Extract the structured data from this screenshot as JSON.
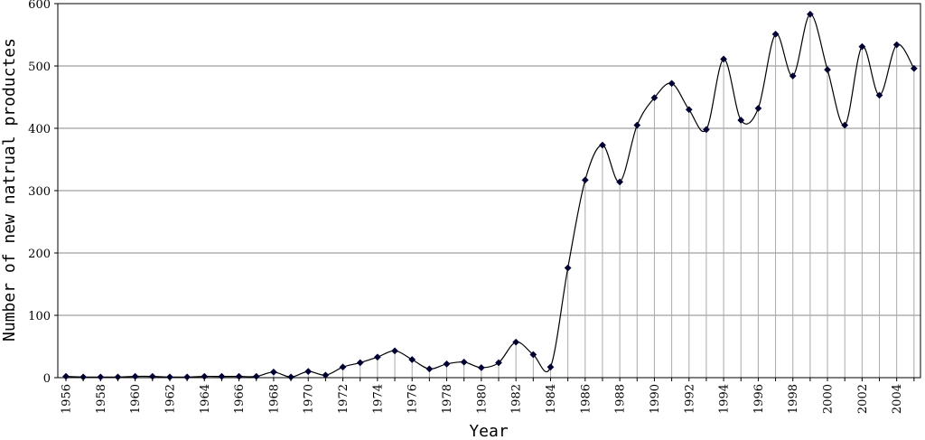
{
  "chart_data": {
    "type": "line",
    "title": "",
    "xlabel": "Year",
    "ylabel": "Number of new natrual productes",
    "ylim": [
      0,
      600
    ],
    "yticks": [
      0,
      100,
      200,
      300,
      400,
      500,
      600
    ],
    "xlim": [
      1956,
      2005
    ],
    "xtick_labels": [
      "1956",
      "1958",
      "1960",
      "1962",
      "1964",
      "1966",
      "1968",
      "1970",
      "1972",
      "1974",
      "1976",
      "1978",
      "1980",
      "1982",
      "1984",
      "1986",
      "1988",
      "1990",
      "1992",
      "1994",
      "1996",
      "1998",
      "2000",
      "2002",
      "2004"
    ],
    "grid": "horizontal",
    "drop_lines": true,
    "smoothed": true,
    "marker": "diamond",
    "colors": {
      "line": "#000000",
      "marker": "#000033",
      "grid": "#888888",
      "drop_line": "#aaaaaa"
    },
    "x": [
      1956,
      1957,
      1958,
      1959,
      1960,
      1961,
      1962,
      1963,
      1964,
      1965,
      1966,
      1967,
      1968,
      1969,
      1970,
      1971,
      1972,
      1973,
      1974,
      1975,
      1976,
      1977,
      1978,
      1979,
      1980,
      1981,
      1982,
      1983,
      1984,
      1985,
      1986,
      1987,
      1988,
      1989,
      1990,
      1991,
      1992,
      1993,
      1994,
      1995,
      1996,
      1997,
      1998,
      1999,
      2000,
      2001,
      2002,
      2003,
      2004,
      2005
    ],
    "values": [
      2,
      1,
      1,
      1,
      2,
      2,
      1,
      1,
      2,
      2,
      2,
      2,
      9,
      1,
      10,
      4,
      17,
      24,
      33,
      43,
      29,
      14,
      22,
      25,
      16,
      24,
      57,
      37,
      17,
      176,
      317,
      373,
      314,
      405,
      449,
      472,
      430,
      398,
      511,
      413,
      432,
      551,
      484,
      583,
      494,
      405,
      531,
      453,
      534,
      496
    ]
  }
}
